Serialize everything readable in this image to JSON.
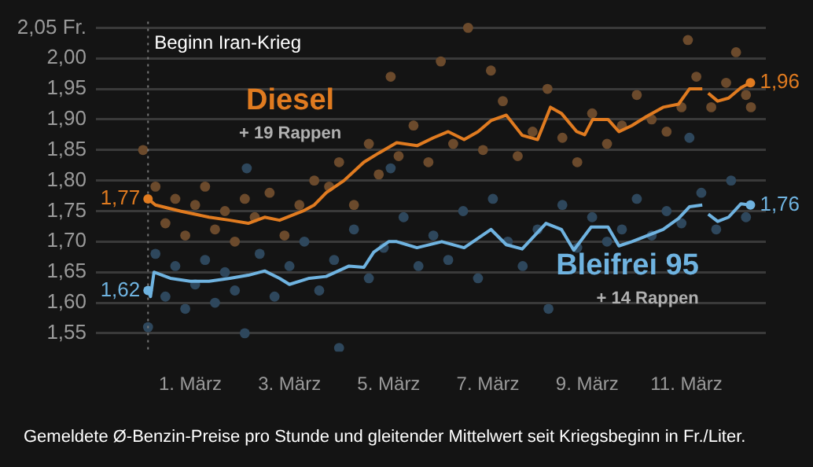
{
  "chart_data": {
    "type": "line",
    "xlim": [
      -0.9,
      12.6
    ],
    "ylim": [
      1.52,
      2.06
    ],
    "xticks": [
      {
        "value": 1,
        "label": "1. März"
      },
      {
        "value": 3,
        "label": "3. März"
      },
      {
        "value": 5,
        "label": "5. März"
      },
      {
        "value": 7,
        "label": "7. März"
      },
      {
        "value": 9,
        "label": "9. März"
      },
      {
        "value": 11,
        "label": "11. März"
      }
    ],
    "yticks": [
      {
        "value": 1.55,
        "label": "1,55"
      },
      {
        "value": 1.6,
        "label": "1,60"
      },
      {
        "value": 1.65,
        "label": "1,65"
      },
      {
        "value": 1.7,
        "label": "1,70"
      },
      {
        "value": 1.75,
        "label": "1,75"
      },
      {
        "value": 1.8,
        "label": "1,80"
      },
      {
        "value": 1.85,
        "label": "1,85"
      },
      {
        "value": 1.9,
        "label": "1,90"
      },
      {
        "value": 1.95,
        "label": "1,95"
      },
      {
        "value": 2.0,
        "label": "2,00"
      },
      {
        "value": 2.05,
        "label": "2,05 Fr."
      }
    ],
    "grid": "y",
    "legend": false,
    "marker": "none",
    "series": [
      {
        "type": "scatter",
        "marker": "circle",
        "color": "#6b4a2c",
        "x": [
          0.05,
          0.3,
          0.5,
          0.7,
          0.9,
          1.1,
          1.3,
          1.5,
          1.7,
          1.9,
          2.1,
          2.3,
          2.6,
          2.9,
          3.2,
          3.5,
          3.8,
          4.0,
          4.3,
          4.6,
          4.8,
          5.04,
          5.2,
          5.5,
          5.8,
          6.05,
          6.3,
          6.6,
          6.9,
          7.06,
          7.3,
          7.6,
          7.9,
          8.2,
          8.5,
          8.8,
          9.1,
          9.4,
          9.7,
          10.0,
          10.3,
          10.6,
          10.9,
          11.03,
          11.2,
          11.5,
          11.8,
          12.0,
          12.2,
          12.3
        ],
        "values": [
          1.85,
          1.79,
          1.73,
          1.77,
          1.71,
          1.76,
          1.79,
          1.72,
          1.75,
          1.7,
          1.77,
          1.74,
          1.78,
          1.71,
          1.76,
          1.8,
          1.79,
          1.83,
          1.76,
          1.86,
          1.81,
          1.97,
          1.84,
          1.89,
          1.83,
          1.995,
          1.86,
          2.05,
          1.85,
          1.98,
          1.93,
          1.84,
          1.88,
          1.95,
          1.87,
          1.83,
          1.91,
          1.86,
          1.89,
          1.94,
          1.9,
          1.88,
          1.92,
          2.03,
          1.97,
          1.92,
          1.96,
          2.01,
          1.94,
          1.92
        ]
      },
      {
        "type": "scatter",
        "marker": "circle",
        "color": "#2e475c",
        "x": [
          0.15,
          0.3,
          0.5,
          0.7,
          0.9,
          1.1,
          1.3,
          1.5,
          1.7,
          1.9,
          2.1,
          2.14,
          2.4,
          2.7,
          3.0,
          3.3,
          3.6,
          3.9,
          4.0,
          4.3,
          4.6,
          4.9,
          5.04,
          5.3,
          5.6,
          5.9,
          6.2,
          6.5,
          6.8,
          7.1,
          7.4,
          7.7,
          8.0,
          8.22,
          8.5,
          8.8,
          9.1,
          9.4,
          9.7,
          10.0,
          10.3,
          10.6,
          10.9,
          11.06,
          11.3,
          11.6,
          11.9,
          12.2
        ],
        "values": [
          1.56,
          1.68,
          1.61,
          1.66,
          1.59,
          1.63,
          1.67,
          1.6,
          1.65,
          1.62,
          1.55,
          1.82,
          1.68,
          1.61,
          1.66,
          1.7,
          1.62,
          1.67,
          1.526,
          1.72,
          1.64,
          1.69,
          1.82,
          1.74,
          1.66,
          1.71,
          1.67,
          1.75,
          1.64,
          1.77,
          1.7,
          1.66,
          1.72,
          1.59,
          1.76,
          1.69,
          1.74,
          1.7,
          1.72,
          1.77,
          1.71,
          1.75,
          1.73,
          1.87,
          1.78,
          1.72,
          1.8,
          1.74
        ]
      },
      {
        "type": "line",
        "name": "Diesel",
        "color": "#e07b20",
        "x": [
          0.15,
          0.3,
          0.8,
          1.38,
          1.8,
          2.17,
          2.5,
          2.8,
          3.27,
          3.5,
          3.74,
          4.1,
          4.5,
          4.8,
          5.16,
          5.57,
          5.9,
          6.2,
          6.52,
          6.8,
          7.06,
          7.37,
          7.69,
          8.0,
          8.26,
          8.48,
          8.79,
          8.95,
          9.11,
          9.42,
          9.64,
          9.9,
          10.2,
          10.53,
          10.84,
          11.06,
          11.32,
          11.38,
          11.44,
          11.63,
          11.85,
          12.1,
          12.29
        ],
        "values": [
          1.77,
          1.76,
          1.75,
          1.74,
          1.735,
          1.73,
          1.74,
          1.735,
          1.75,
          1.76,
          1.78,
          1.8,
          1.83,
          1.845,
          1.862,
          1.857,
          1.87,
          1.88,
          1.867,
          1.88,
          1.898,
          1.907,
          1.874,
          1.867,
          1.92,
          1.91,
          1.88,
          1.875,
          1.9,
          1.9,
          1.88,
          1.89,
          1.905,
          1.92,
          1.925,
          1.95,
          1.95,
          null,
          1.943,
          1.93,
          1.935,
          1.952,
          1.96
        ],
        "value_labels": [
          "1,77",
          null,
          null,
          null,
          null,
          null,
          null,
          null,
          null,
          null,
          null,
          null,
          null,
          null,
          null,
          null,
          null,
          null,
          null,
          null,
          null,
          null,
          null,
          null,
          null,
          null,
          null,
          null,
          null,
          null,
          null,
          null,
          null,
          null,
          null,
          null,
          null,
          null,
          null,
          null,
          null,
          null,
          "1,96"
        ]
      },
      {
        "type": "line",
        "name": "Bleifrei 95",
        "color": "#6fb3e0",
        "x": [
          0.15,
          0.2,
          0.27,
          0.6,
          1.0,
          1.38,
          1.8,
          2.17,
          2.5,
          2.8,
          3.0,
          3.4,
          3.74,
          4.2,
          4.5,
          4.7,
          5.0,
          5.16,
          5.57,
          6.07,
          6.52,
          7.06,
          7.37,
          7.69,
          8.17,
          8.48,
          8.73,
          9.08,
          9.42,
          9.64,
          9.9,
          10.53,
          10.84,
          11.06,
          11.32,
          11.38,
          11.44,
          11.63,
          11.85,
          12.1,
          12.29
        ],
        "values": [
          1.62,
          1.61,
          1.65,
          1.64,
          1.635,
          1.635,
          1.64,
          1.645,
          1.652,
          1.64,
          1.63,
          1.64,
          1.643,
          1.66,
          1.658,
          1.683,
          1.7,
          1.7,
          1.69,
          1.7,
          1.69,
          1.72,
          1.695,
          1.688,
          1.73,
          1.72,
          1.686,
          1.724,
          1.724,
          1.693,
          1.7,
          1.72,
          1.738,
          1.757,
          1.76,
          null,
          1.745,
          1.733,
          1.74,
          1.762,
          1.76
        ],
        "value_labels": [
          "1,62",
          null,
          null,
          null,
          null,
          null,
          null,
          null,
          null,
          null,
          null,
          null,
          null,
          null,
          null,
          null,
          null,
          null,
          null,
          null,
          null,
          null,
          null,
          null,
          null,
          null,
          null,
          null,
          null,
          null,
          null,
          null,
          null,
          null,
          null,
          null,
          null,
          null,
          null,
          null,
          "1,76"
        ]
      }
    ],
    "ref_lines": [
      {
        "axis": "x",
        "value": 0.15,
        "label": "Beginn Iran-Krieg",
        "line_style": "dotted",
        "color": "#777777"
      }
    ],
    "annotations": [
      "+ 19 Rappen",
      "+ 14 Rappen",
      "Gemeldete Ø-Benzin-Preise pro Stunde und gleitender Mittelwert seit Kriegsbeginn in Fr./Liter."
    ]
  }
}
